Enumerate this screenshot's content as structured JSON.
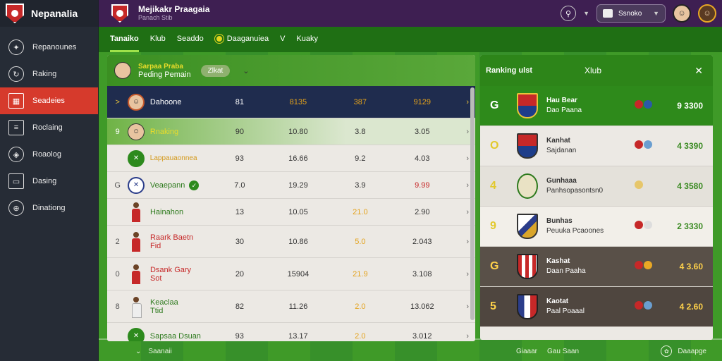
{
  "app": {
    "name": "Nepanalia"
  },
  "topbar": {
    "title": "Mejikakr Praagaia",
    "subtitle": "Panach Stib",
    "search_label": "Ssnoko"
  },
  "sidebar": {
    "items": [
      {
        "label": "Repanounes",
        "icon": "compass-icon"
      },
      {
        "label": "Raking",
        "icon": "refresh-icon"
      },
      {
        "label": "Seadeies",
        "icon": "calendar-icon",
        "active": true
      },
      {
        "label": "Roclaing",
        "icon": "list-icon"
      },
      {
        "label": "Roaolog",
        "icon": "shield-icon"
      },
      {
        "label": "Dasing",
        "icon": "monitor-icon"
      },
      {
        "label": "Dinationg",
        "icon": "globe-icon"
      }
    ]
  },
  "tabs": [
    {
      "label": "Tanaiko",
      "active": true
    },
    {
      "label": "Klub"
    },
    {
      "label": "Seaddo"
    },
    {
      "label": "Daaganuiea"
    },
    {
      "label": "V"
    },
    {
      "label": "Kuaky"
    }
  ],
  "main": {
    "header": {
      "line1": "Sarpaa Praba",
      "line2": "Peding Pemain",
      "chip": "Zlkat"
    },
    "rows": [
      {
        "rank": ">",
        "name": "Dahoone",
        "c1": "81",
        "c2": "8135",
        "c3": "387",
        "c4": "9129"
      },
      {
        "rank": "9",
        "name": "Rnaking",
        "c1": "90",
        "c2": "10.80",
        "c3": "3.8",
        "c4": "3.05"
      },
      {
        "rank": "",
        "name": "Lappauaonnea",
        "c1": "93",
        "c2": "16.66",
        "c3": "9.2",
        "c4": "4.03"
      },
      {
        "rank": "G",
        "name": "Veaepann",
        "c1": "7.0",
        "c2": "19.29",
        "c3": "3.9",
        "c4": "9.99"
      },
      {
        "rank": "",
        "name": "Hainahon",
        "c1": "13",
        "c2": "10.05",
        "c3": "21.0",
        "c4": "2.90"
      },
      {
        "rank": "2",
        "name": "Raark Baetn",
        "sub": "Fid",
        "c1": "30",
        "c2": "10.86",
        "c3": "5.0",
        "c4": "2.043"
      },
      {
        "rank": "0",
        "name": "Dsank Gary",
        "sub": "Sot",
        "c1": "20",
        "c2": "15904",
        "c3": "21.9",
        "c4": "3.108"
      },
      {
        "rank": "8",
        "name": "Keaclaa",
        "sub": "Ttid",
        "c1": "82",
        "c2": "11.26",
        "c3": "2.0",
        "c4": "13.062"
      },
      {
        "rank": "",
        "name": "Sapsaa Dsuan",
        "c1": "93",
        "c2": "13.17",
        "c3": "2.0",
        "c4": "3.012"
      }
    ]
  },
  "rpanel": {
    "title": "Ranking ulst",
    "subtitle": "Xlub",
    "rows": [
      {
        "pos": "G",
        "a": "Hau Bear",
        "b": "Dao Paana",
        "pts": "9 3300"
      },
      {
        "pos": "O",
        "a": "Kanhat",
        "b": "Sajdanan",
        "pts": "4 3390"
      },
      {
        "pos": "4",
        "a": "Gunhaaa",
        "b": "Panhsopasontsn0",
        "pts": "4 3580"
      },
      {
        "pos": "9",
        "a": "Bunhas",
        "b": "Peuuka Pcaoones",
        "pts": "2 3330"
      },
      {
        "pos": "G",
        "a": "Kashat",
        "b": "Daan Paaha",
        "pts": "4 3.60"
      },
      {
        "pos": "5",
        "a": "Kaotat",
        "b": "Paal Poaaal",
        "pts": "4 2.60"
      }
    ]
  },
  "bottom": {
    "left": "Saanaii",
    "mid_a": "Giaaar",
    "mid_b": "Gau Saan",
    "right": "Daaapge"
  },
  "colors": {
    "sidebar": "#262c36",
    "topbar": "#3e1f52",
    "accent_red": "#d63a2c",
    "pitch": "#3f9a28"
  }
}
